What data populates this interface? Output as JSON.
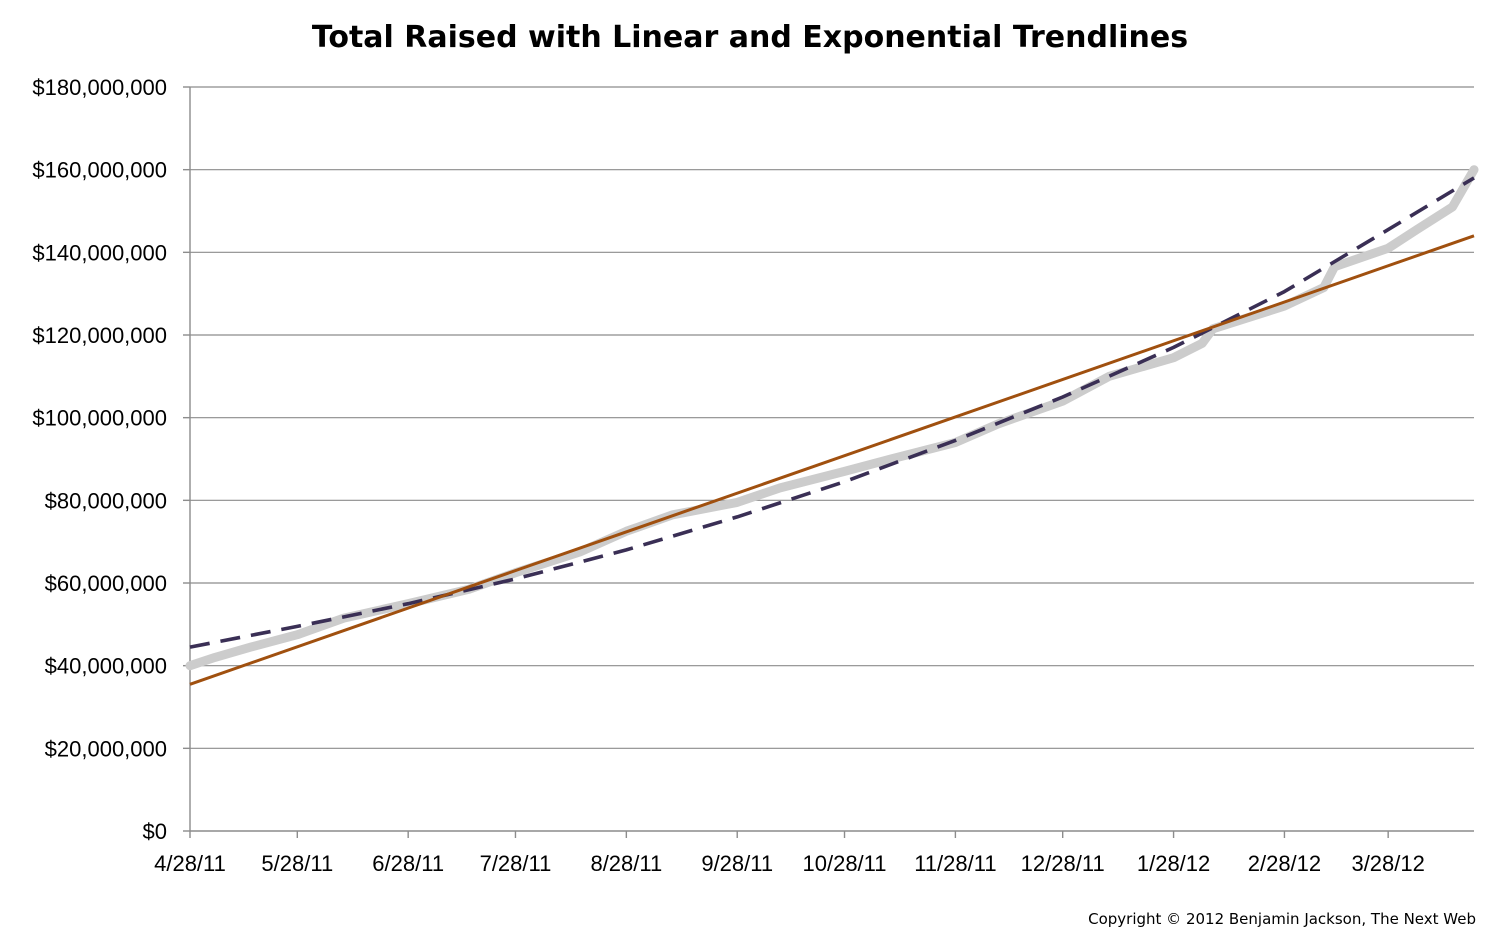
{
  "chart_data": {
    "type": "line",
    "title": "Total Raised with Linear and Exponential Trendlines",
    "xlabel": "",
    "ylabel": "",
    "x_tick_labels": [
      "4/28/11",
      "5/28/11",
      "6/28/11",
      "7/28/11",
      "8/28/11",
      "9/28/11",
      "10/28/11",
      "11/28/11",
      "12/28/11",
      "1/28/12",
      "2/28/12",
      "3/28/12"
    ],
    "y_tick_labels": [
      "$0",
      "$20,000,000",
      "$40,000,000",
      "$60,000,000",
      "$80,000,000",
      "$100,000,000",
      "$120,000,000",
      "$140,000,000",
      "$160,000,000",
      "$180,000,000"
    ],
    "xlim": [
      "2011-04-28",
      "2012-04-21"
    ],
    "ylim": [
      0,
      180000000
    ],
    "grid": {
      "horizontal": true,
      "vertical": false
    },
    "legend": "none",
    "series": [
      {
        "color": "#cccccc",
        "style": "thick-solid",
        "x": [
          "2011-04-28",
          "2011-05-05",
          "2011-05-15",
          "2011-05-28",
          "2011-06-10",
          "2011-06-28",
          "2011-07-15",
          "2011-07-28",
          "2011-08-15",
          "2011-08-28",
          "2011-09-10",
          "2011-09-28",
          "2011-10-10",
          "2011-10-28",
          "2011-11-10",
          "2011-11-28",
          "2011-12-10",
          "2011-12-28",
          "2012-01-10",
          "2012-01-28",
          "2012-02-05",
          "2012-02-08",
          "2012-02-28",
          "2012-03-10",
          "2012-03-13",
          "2012-03-28",
          "2012-04-05",
          "2012-04-15",
          "2012-04-21"
        ],
        "y": [
          40000000,
          42000000,
          44500000,
          47500000,
          51500000,
          55000000,
          58500000,
          62500000,
          67500000,
          72500000,
          76500000,
          79500000,
          83000000,
          87000000,
          90000000,
          94000000,
          98500000,
          104000000,
          110000000,
          114500000,
          118000000,
          121500000,
          127000000,
          131500000,
          136500000,
          141000000,
          145500000,
          151000000,
          160000000
        ]
      },
      {
        "color": "#3a2f55",
        "style": "dashed",
        "x": [
          "2011-04-28",
          "2011-05-28",
          "2011-06-28",
          "2011-07-28",
          "2011-08-28",
          "2011-09-28",
          "2011-10-28",
          "2011-11-28",
          "2011-12-28",
          "2012-01-28",
          "2012-02-28",
          "2012-03-28",
          "2012-04-21"
        ],
        "y": [
          44500000,
          49500000,
          55000000,
          61000000,
          68000000,
          76000000,
          84500000,
          94500000,
          105000000,
          117000000,
          130500000,
          145500000,
          158000000
        ]
      },
      {
        "color": "#a0500f",
        "style": "solid",
        "x": [
          "2011-04-28",
          "2012-04-21"
        ],
        "y": [
          35500000,
          144000000
        ]
      }
    ]
  },
  "copyright": "Copyright © 2012 Benjamin Jackson, The Next Web"
}
